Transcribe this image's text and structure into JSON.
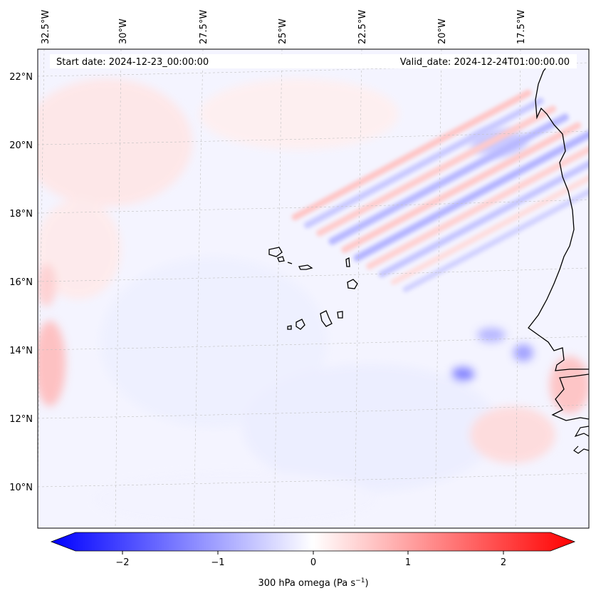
{
  "map": {
    "start_date": "Start date: 2024-12-23_00:00:00",
    "valid_date": "Valid_date: 2024-12-24T01:00:00.00",
    "lon_labels": [
      "32.5°W",
      "30°W",
      "27.5°W",
      "25°W",
      "22.5°W",
      "20°W",
      "17.5°W"
    ],
    "lat_labels": [
      "22°N",
      "20°N",
      "18°N",
      "16°N",
      "14°N",
      "12°N",
      "10°N"
    ],
    "field": "300 hPa omega",
    "colormap": "bwr",
    "colors": {
      "negative": "#0000ff",
      "zero": "#ffffff",
      "positive": "#ff0000",
      "coast": "#000000",
      "grid": "#b0b0b0"
    }
  },
  "colorbar": {
    "label_text": "300 hPa omega (Pa s",
    "label_exp": "−1",
    "label_close": ")",
    "ticks": [
      "−2",
      "−1",
      "0",
      "1",
      "2"
    ],
    "range": [
      -2.5,
      2.5
    ],
    "extend": "both"
  }
}
